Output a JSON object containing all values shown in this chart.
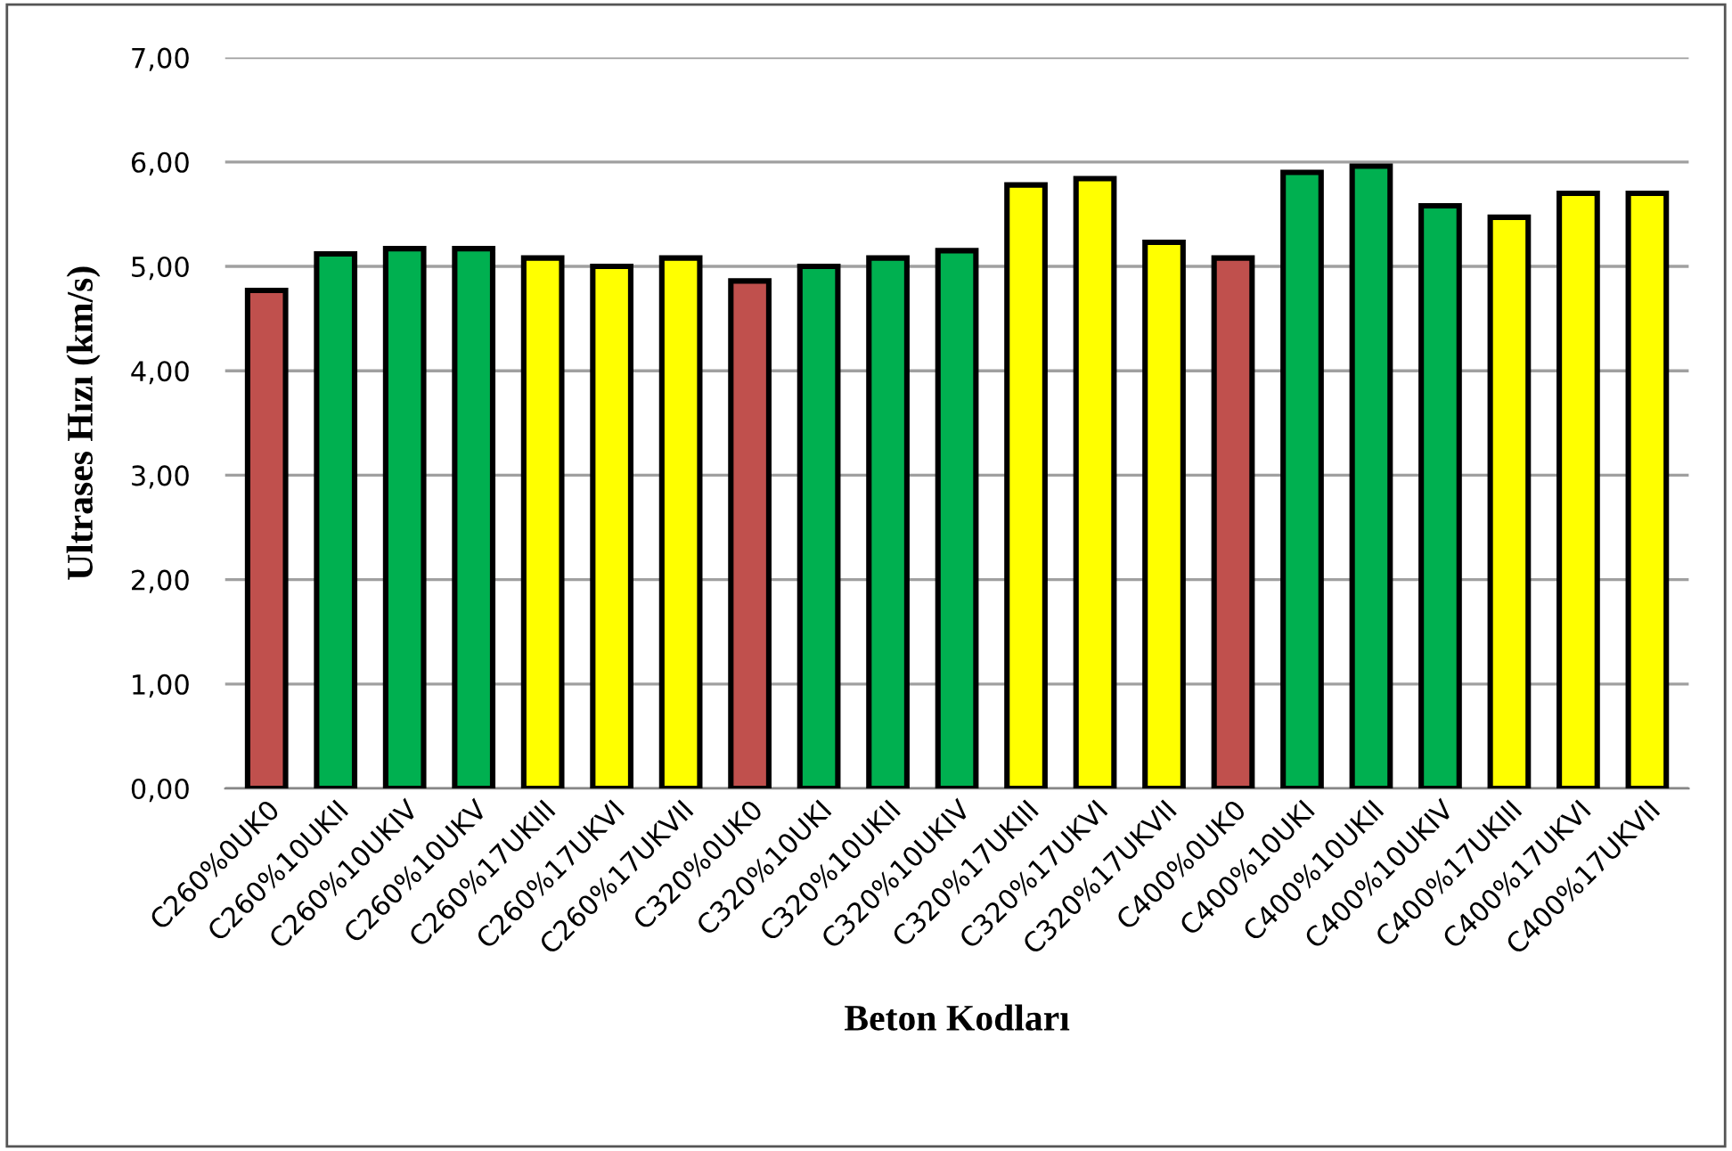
{
  "chart_data": {
    "type": "bar",
    "xlabel": "Beton Kodları",
    "ylabel": "Ultrases Hızı (km/s)",
    "categories": [
      "C260%0UK0",
      "C260%10UKII",
      "C260%10UKIV",
      "C260%10UKV",
      "C260%17UKIII",
      "C260%17UKVI",
      "C260%17UKVII",
      "C320%0UK0",
      "C320%10UKI",
      "C320%10UKII",
      "C320%10UKIV",
      "C320%17UKIII",
      "C320%17UKVI",
      "C320%17UKVII",
      "C400%0UK0",
      "C400%10UKI",
      "C400%10UKII",
      "C400%10UKIV",
      "C400%17UKIII",
      "C400%17UKVI",
      "C400%17UKVII"
    ],
    "values": [
      4.77,
      5.12,
      5.17,
      5.17,
      5.08,
      5.0,
      5.08,
      4.86,
      5.0,
      5.08,
      5.15,
      5.78,
      5.84,
      5.23,
      5.08,
      5.9,
      5.96,
      5.58,
      5.47,
      5.7,
      5.7
    ],
    "colors": [
      "#c0504d",
      "#00b050",
      "#00b050",
      "#00b050",
      "#ffff00",
      "#ffff00",
      "#ffff00",
      "#c0504d",
      "#00b050",
      "#00b050",
      "#00b050",
      "#ffff00",
      "#ffff00",
      "#ffff00",
      "#c0504d",
      "#00b050",
      "#00b050",
      "#00b050",
      "#ffff00",
      "#ffff00",
      "#ffff00"
    ],
    "ylim": [
      0,
      7
    ],
    "yticks": [
      {
        "value": 0,
        "label": "0,00"
      },
      {
        "value": 1,
        "label": "1,00"
      },
      {
        "value": 2,
        "label": "2,00"
      },
      {
        "value": 3,
        "label": "3,00"
      },
      {
        "value": 4,
        "label": "4,00"
      },
      {
        "value": 5,
        "label": "5,00"
      },
      {
        "value": 6,
        "label": "6,00"
      },
      {
        "value": 7,
        "label": "7,00"
      }
    ],
    "grid": "y",
    "legend": false
  }
}
